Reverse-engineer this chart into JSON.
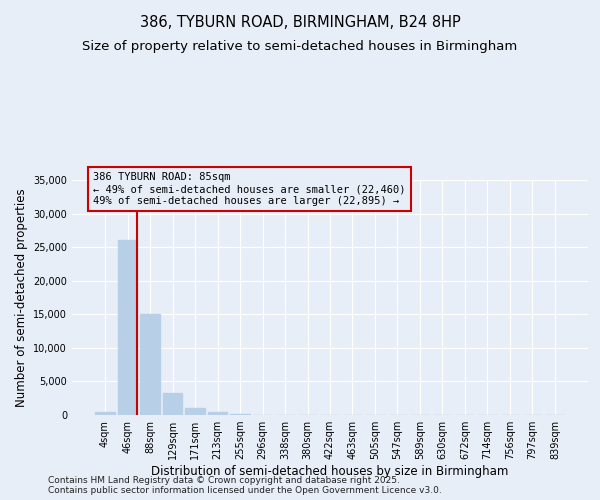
{
  "title_line1": "386, TYBURN ROAD, BIRMINGHAM, B24 8HP",
  "title_line2": "Size of property relative to semi-detached houses in Birmingham",
  "xlabel": "Distribution of semi-detached houses by size in Birmingham",
  "ylabel": "Number of semi-detached properties",
  "categories": [
    "4sqm",
    "46sqm",
    "88sqm",
    "129sqm",
    "171sqm",
    "213sqm",
    "255sqm",
    "296sqm",
    "338sqm",
    "380sqm",
    "422sqm",
    "463sqm",
    "505sqm",
    "547sqm",
    "589sqm",
    "630sqm",
    "672sqm",
    "714sqm",
    "756sqm",
    "797sqm",
    "839sqm"
  ],
  "values": [
    400,
    26100,
    15100,
    3300,
    1050,
    450,
    150,
    50,
    0,
    0,
    0,
    0,
    0,
    0,
    0,
    0,
    0,
    0,
    0,
    0,
    0
  ],
  "bar_color": "#b8cfe8",
  "vline_color": "#cc0000",
  "annotation_title": "386 TYBURN ROAD: 85sqm",
  "annotation_line1": "← 49% of semi-detached houses are smaller (22,460)",
  "annotation_line2": "49% of semi-detached houses are larger (22,895) →",
  "annotation_box_color": "#cc0000",
  "ylim": [
    0,
    35000
  ],
  "yticks": [
    0,
    5000,
    10000,
    15000,
    20000,
    25000,
    30000,
    35000
  ],
  "footnote_line1": "Contains HM Land Registry data © Crown copyright and database right 2025.",
  "footnote_line2": "Contains public sector information licensed under the Open Government Licence v3.0.",
  "background_color": "#e8eef8",
  "grid_color": "#ffffff",
  "title_fontsize": 10.5,
  "subtitle_fontsize": 9.5,
  "axis_label_fontsize": 8.5,
  "tick_fontsize": 7,
  "annotation_fontsize": 7.5,
  "footnote_fontsize": 6.5
}
